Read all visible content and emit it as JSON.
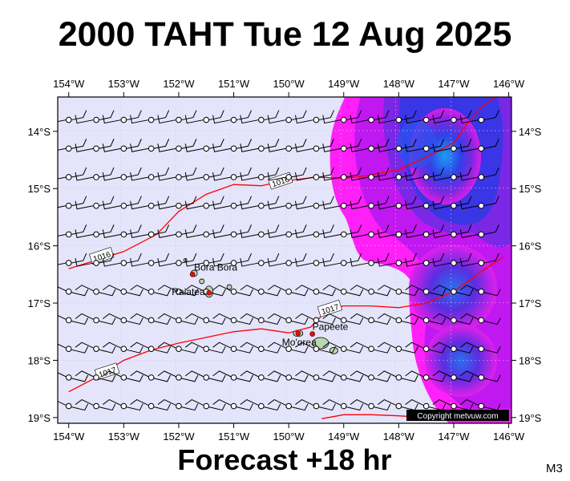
{
  "title": "2000 TAHT Tue 12 Aug 2025",
  "footer": "Forecast +18 hr",
  "model_code": "M3",
  "copyright": "Copyright metvuw.com",
  "map": {
    "lon_ticks": [
      "154°W",
      "153°W",
      "152°W",
      "151°W",
      "150°W",
      "149°W",
      "148°W",
      "147°W",
      "146°W"
    ],
    "lat_ticks": [
      "14°S",
      "15°S",
      "16°S",
      "17°S",
      "18°S",
      "19°S"
    ],
    "places": [
      {
        "name": "Bora Bora",
        "lon": -151.75,
        "lat": -16.5
      },
      {
        "name": "Raiatea",
        "lon": -151.45,
        "lat": -16.82
      },
      {
        "name": "Mo'orea",
        "lon": -149.83,
        "lat": -17.53
      },
      {
        "name": "Papeete",
        "lon": -149.57,
        "lat": -17.54
      }
    ],
    "isobars": [
      {
        "label": "1016",
        "points": [
          [
            -154.0,
            -16.4
          ],
          [
            -153.0,
            -16.1
          ],
          [
            -152.4,
            -15.8
          ],
          [
            -152.0,
            -15.4
          ],
          [
            -151.5,
            -15.1
          ],
          [
            -151.0,
            -14.93
          ],
          [
            -150.5,
            -14.95
          ],
          [
            -150.1,
            -14.87
          ],
          [
            -149.5,
            -14.8
          ],
          [
            -149.0,
            -14.82
          ],
          [
            -148.6,
            -14.78
          ],
          [
            -148.0,
            -14.67
          ],
          [
            -147.5,
            -14.45
          ],
          [
            -147.0,
            -14.2
          ],
          [
            -146.7,
            -13.8
          ],
          [
            -146.4,
            -13.5
          ],
          [
            -146.15,
            -13.35
          ]
        ],
        "label_at": [
          -150.15,
          -14.87
        ]
      },
      {
        "label": "1016",
        "points": [
          [
            -153.0,
            -16.1
          ]
        ],
        "label_at": [
          -153.4,
          -16.18
        ]
      },
      {
        "label": "1017",
        "points": [
          [
            -154.0,
            -18.55
          ],
          [
            -153.5,
            -18.3
          ],
          [
            -153.0,
            -18.0
          ],
          [
            -152.5,
            -17.82
          ],
          [
            -152.0,
            -17.7
          ],
          [
            -151.5,
            -17.6
          ],
          [
            -151.0,
            -17.5
          ],
          [
            -150.5,
            -17.45
          ],
          [
            -150.0,
            -17.52
          ],
          [
            -149.6,
            -17.42
          ],
          [
            -149.3,
            -17.12
          ],
          [
            -149.0,
            -17.05
          ],
          [
            -148.5,
            -17.05
          ],
          [
            -148.0,
            -17.08
          ],
          [
            -147.5,
            -17.0
          ],
          [
            -147.0,
            -16.8
          ],
          [
            -146.5,
            -16.45
          ],
          [
            -146.1,
            -16.2
          ]
        ],
        "label_at": [
          -149.25,
          -17.1
        ]
      },
      {
        "label": "1017",
        "points": [
          [
            -153.2,
            -18.2
          ]
        ],
        "label_at": [
          -153.3,
          -18.2
        ]
      },
      {
        "label": "",
        "points": [
          [
            -149.4,
            -19.02
          ],
          [
            -149.0,
            -18.95
          ],
          [
            -148.5,
            -18.95
          ],
          [
            -148.0,
            -18.97
          ],
          [
            -147.5,
            -19.0
          ],
          [
            -147.2,
            -18.98
          ]
        ],
        "label_at": null
      }
    ]
  }
}
